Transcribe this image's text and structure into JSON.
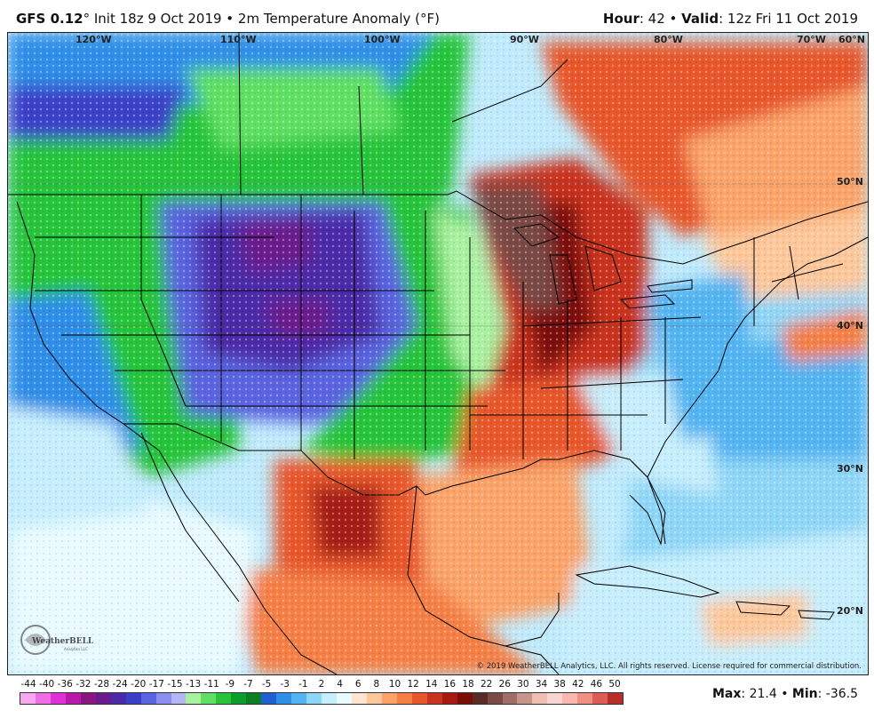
{
  "header": {
    "model": "GFS 0.12",
    "deg": "°",
    "init": " Init 18z 9 Oct 2019 • 2m Temperature Anomaly (°F)",
    "hour_label": "Hour",
    "hour_value": ": 42 • ",
    "valid_label": "Valid",
    "valid_value": ": 12z Fri 11 Oct 2019"
  },
  "longitudes": [
    "120°W",
    "110°W",
    "100°W",
    "90°W",
    "80°W",
    "70°W",
    "60°N"
  ],
  "latitudes": [
    "50°N",
    "40°N",
    "30°N",
    "20°N"
  ],
  "logo": {
    "text": "WeatherBELL",
    "sub": "Analytics LLC"
  },
  "copyright": "© 2019 WeatherBELL Analytics, LLC. All rights reserved. License required for commercial distribution.",
  "colorbar": {
    "labels": [
      "-44",
      "-40",
      "-36",
      "-32",
      "-28",
      "-24",
      "-20",
      "-17",
      "-15",
      "-13",
      "-11",
      "-9",
      "-7",
      "-5",
      "-3",
      "-1",
      "2",
      "4",
      "6",
      "8",
      "10",
      "12",
      "14",
      "16",
      "18",
      "22",
      "26",
      "30",
      "34",
      "38",
      "42",
      "46",
      "50"
    ],
    "colors": [
      "#f7a8f0",
      "#ef6ee6",
      "#e031d6",
      "#b81aa8",
      "#8a1681",
      "#6a1a8c",
      "#4b2aa8",
      "#3b3fc8",
      "#5a64e0",
      "#8c8ff0",
      "#b6b6f7",
      "#a9f2a0",
      "#5fe063",
      "#27c43a",
      "#0c9e2a",
      "#0b7e26",
      "#1f5fcf",
      "#2f8ee8",
      "#52b4f2",
      "#8ed6f7",
      "#c6eefc",
      "#e9fbff",
      "#fde5cf",
      "#fdc79a",
      "#fba368",
      "#f57f44",
      "#e8562b",
      "#c9331d",
      "#a51b12",
      "#7c0e0a",
      "#5b2b25",
      "#7a4a44",
      "#a06e66",
      "#c7958c",
      "#f0bdb3",
      "#f7d6d0",
      "#f9b7b0",
      "#f08f86",
      "#dc5d55",
      "#b82e2a"
    ]
  },
  "stats": {
    "max_label": "Max",
    "max_value": ": 21.4 • ",
    "min_label": "Min",
    "min_value": ": -36.5"
  }
}
